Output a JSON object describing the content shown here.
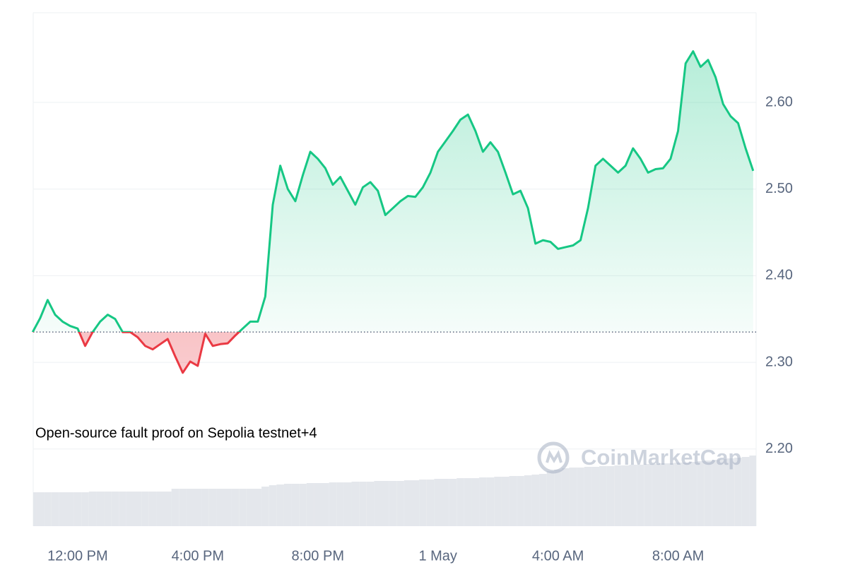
{
  "chart_data": {
    "type": "line",
    "annotation": "Open-source fault proof on Sepolia testnet+4",
    "watermark": "CoinMarketCap",
    "xlim": [
      10.52,
      34.6
    ],
    "xticks": [
      {
        "value": 12,
        "label": "12:00 PM"
      },
      {
        "value": 16,
        "label": "4:00 PM"
      },
      {
        "value": 20,
        "label": "8:00 PM"
      },
      {
        "value": 24,
        "label": "1 May"
      },
      {
        "value": 28,
        "label": "4:00 AM"
      },
      {
        "value": 32,
        "label": "8:00 AM"
      }
    ],
    "ylim": [
      2.111,
      2.7035
    ],
    "yticks": [
      {
        "value": 2.2,
        "label": "2.20"
      },
      {
        "value": 2.3,
        "label": "2.30"
      },
      {
        "value": 2.4,
        "label": "2.40"
      },
      {
        "value": 2.5,
        "label": "2.50"
      },
      {
        "value": 2.6,
        "label": "2.60"
      }
    ],
    "grid": true,
    "baseline": 2.335,
    "color_up": "#16c784",
    "color_down": "#ea3943",
    "volume_color": "#e4e7ec",
    "x": [
      10.5,
      10.75,
      11,
      11.25,
      11.5,
      11.75,
      12,
      12.25,
      12.5,
      12.75,
      13,
      13.25,
      13.5,
      13.75,
      14,
      14.25,
      14.5,
      14.75,
      15,
      15.25,
      15.5,
      15.75,
      16,
      16.25,
      16.5,
      16.75,
      17,
      17.25,
      17.5,
      17.75,
      18,
      18.25,
      18.5,
      18.75,
      19,
      19.25,
      19.5,
      19.75,
      20,
      20.25,
      20.5,
      20.75,
      21,
      21.25,
      21.5,
      21.75,
      22,
      22.25,
      22.5,
      22.75,
      23,
      23.25,
      23.5,
      23.75,
      24,
      24.25,
      24.5,
      24.75,
      25,
      25.25,
      25.5,
      25.75,
      26,
      26.25,
      26.5,
      26.75,
      27,
      27.25,
      27.5,
      27.75,
      28,
      28.25,
      28.5,
      28.75,
      29,
      29.25,
      29.5,
      29.75,
      30,
      30.25,
      30.5,
      30.75,
      31,
      31.25,
      31.5,
      31.75,
      32,
      32.25,
      32.5,
      32.75,
      33,
      33.25,
      33.5,
      33.75,
      34,
      34.25,
      34.5
    ],
    "values": [
      2.335,
      2.351,
      2.372,
      2.355,
      2.347,
      2.342,
      2.339,
      2.319,
      2.335,
      2.347,
      2.355,
      2.35,
      2.335,
      2.335,
      2.329,
      2.319,
      2.315,
      2.321,
      2.327,
      2.307,
      2.288,
      2.301,
      2.296,
      2.333,
      2.319,
      2.321,
      2.322,
      2.331,
      2.339,
      2.347,
      2.347,
      2.376,
      2.482,
      2.527,
      2.5,
      2.486,
      2.516,
      2.543,
      2.535,
      2.524,
      2.505,
      2.514,
      2.498,
      2.482,
      2.502,
      2.508,
      2.498,
      2.47,
      2.478,
      2.486,
      2.492,
      2.491,
      2.502,
      2.519,
      2.543,
      2.555,
      2.567,
      2.58,
      2.586,
      2.567,
      2.543,
      2.554,
      2.543,
      2.519,
      2.494,
      2.498,
      2.478,
      2.437,
      2.441,
      2.439,
      2.431,
      2.433,
      2.435,
      2.441,
      2.478,
      2.527,
      2.535,
      2.527,
      2.519,
      2.527,
      2.547,
      2.535,
      2.519,
      2.523,
      2.524,
      2.535,
      2.567,
      2.645,
      2.659,
      2.641,
      2.649,
      2.629,
      2.598,
      2.584,
      2.576,
      2.547,
      2.521
    ],
    "volume": [
      48,
      48,
      48,
      48,
      48,
      48,
      48,
      48,
      49,
      49,
      49,
      49,
      49,
      49,
      49,
      49,
      49,
      49,
      49,
      53,
      53,
      53,
      53,
      53,
      53,
      53,
      53,
      53,
      53,
      53,
      53,
      56,
      58,
      59,
      60,
      60,
      60,
      61,
      61,
      61,
      62,
      62,
      62,
      63,
      63,
      63,
      64,
      64,
      64,
      64,
      65,
      65,
      66,
      66,
      67,
      67,
      67,
      68,
      68,
      68,
      69,
      69,
      70,
      70,
      71,
      71,
      72,
      73,
      74,
      78,
      80,
      82,
      83,
      83,
      84,
      84,
      85,
      85,
      86,
      86,
      87,
      87,
      88,
      88,
      89,
      89,
      90,
      90,
      91,
      92,
      93,
      94,
      95,
      96,
      97,
      98,
      100
    ]
  }
}
